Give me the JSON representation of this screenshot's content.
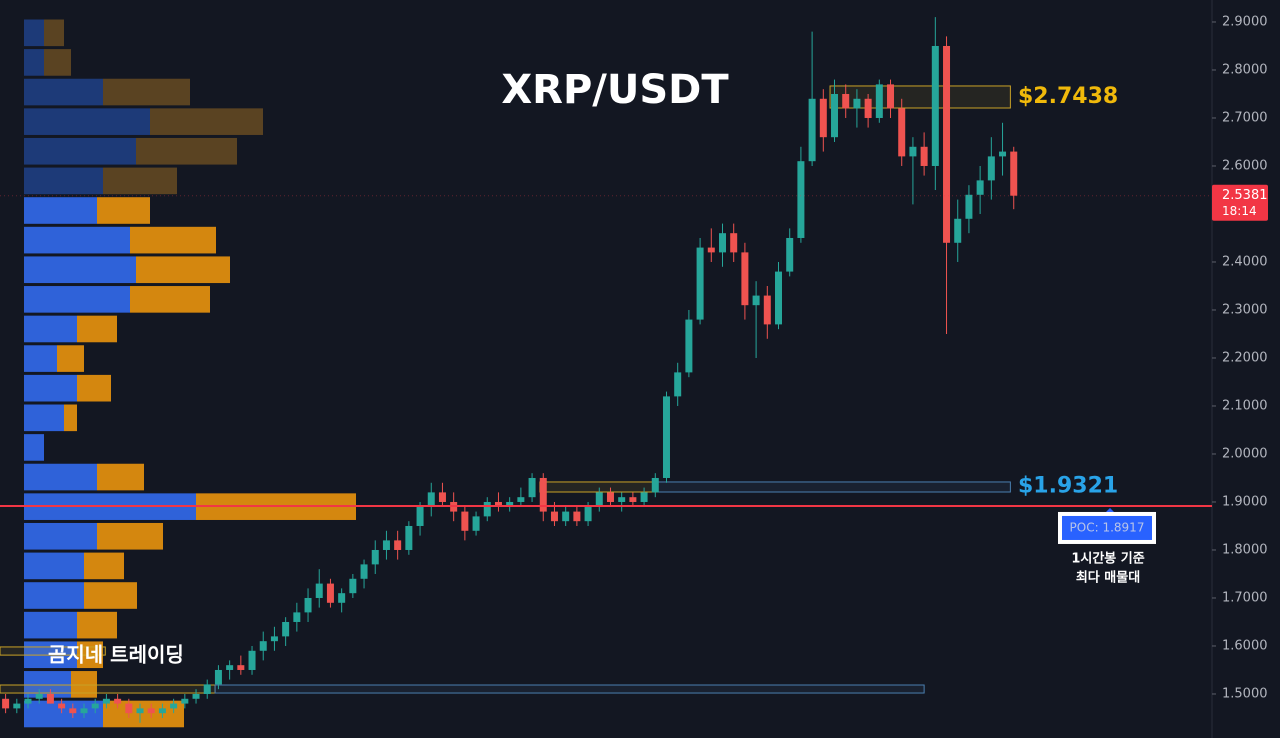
{
  "chart_data": {
    "type": "candlestick",
    "title": "XRP/USDT",
    "up_color": "#26a69a",
    "down_color": "#ef5350",
    "xlim": [
      -0.5,
      107.7
    ],
    "ylim": [
      1.4083,
      2.9458
    ],
    "yticks": [
      {
        "value": 2.9,
        "label": "2.9000"
      },
      {
        "value": 2.8,
        "label": "2.8000"
      },
      {
        "value": 2.7,
        "label": "2.7000"
      },
      {
        "value": 2.6,
        "label": "2.6000"
      },
      {
        "value": 2.5,
        "label": "2.5000"
      },
      {
        "value": 2.4,
        "label": "2.4000"
      },
      {
        "value": 2.3,
        "label": "2.3000"
      },
      {
        "value": 2.2,
        "label": "2.2000"
      },
      {
        "value": 2.1,
        "label": "2.1000"
      },
      {
        "value": 2.0,
        "label": "2.0000"
      },
      {
        "value": 1.9,
        "label": "1.9000"
      },
      {
        "value": 1.8,
        "label": "1.8000"
      },
      {
        "value": 1.7,
        "label": "1.7000"
      },
      {
        "value": 1.6,
        "label": "1.6000"
      },
      {
        "value": 1.5,
        "label": "1.5000"
      }
    ],
    "ohlc": [
      [
        1.49,
        1.5,
        1.46,
        1.47
      ],
      [
        1.47,
        1.49,
        1.46,
        1.48
      ],
      [
        1.48,
        1.5,
        1.47,
        1.49
      ],
      [
        1.49,
        1.51,
        1.48,
        1.5
      ],
      [
        1.5,
        1.51,
        1.48,
        1.48
      ],
      [
        1.48,
        1.49,
        1.46,
        1.47
      ],
      [
        1.47,
        1.48,
        1.45,
        1.46
      ],
      [
        1.46,
        1.48,
        1.45,
        1.47
      ],
      [
        1.47,
        1.49,
        1.46,
        1.48
      ],
      [
        1.48,
        1.5,
        1.47,
        1.49
      ],
      [
        1.49,
        1.5,
        1.47,
        1.48
      ],
      [
        1.48,
        1.49,
        1.45,
        1.46
      ],
      [
        1.46,
        1.48,
        1.44,
        1.47
      ],
      [
        1.47,
        1.48,
        1.45,
        1.46
      ],
      [
        1.46,
        1.48,
        1.45,
        1.47
      ],
      [
        1.47,
        1.49,
        1.46,
        1.48
      ],
      [
        1.48,
        1.5,
        1.47,
        1.49
      ],
      [
        1.49,
        1.51,
        1.48,
        1.5
      ],
      [
        1.5,
        1.53,
        1.49,
        1.52
      ],
      [
        1.52,
        1.56,
        1.51,
        1.55
      ],
      [
        1.55,
        1.57,
        1.53,
        1.56
      ],
      [
        1.56,
        1.58,
        1.54,
        1.55
      ],
      [
        1.55,
        1.6,
        1.54,
        1.59
      ],
      [
        1.59,
        1.63,
        1.57,
        1.61
      ],
      [
        1.61,
        1.64,
        1.59,
        1.62
      ],
      [
        1.62,
        1.66,
        1.6,
        1.65
      ],
      [
        1.65,
        1.69,
        1.63,
        1.67
      ],
      [
        1.67,
        1.72,
        1.65,
        1.7
      ],
      [
        1.7,
        1.76,
        1.68,
        1.73
      ],
      [
        1.73,
        1.74,
        1.68,
        1.69
      ],
      [
        1.69,
        1.72,
        1.67,
        1.71
      ],
      [
        1.71,
        1.75,
        1.7,
        1.74
      ],
      [
        1.74,
        1.78,
        1.72,
        1.77
      ],
      [
        1.77,
        1.82,
        1.75,
        1.8
      ],
      [
        1.8,
        1.84,
        1.78,
        1.82
      ],
      [
        1.82,
        1.84,
        1.78,
        1.8
      ],
      [
        1.8,
        1.86,
        1.79,
        1.85
      ],
      [
        1.85,
        1.9,
        1.83,
        1.89
      ],
      [
        1.89,
        1.94,
        1.87,
        1.92
      ],
      [
        1.92,
        1.94,
        1.89,
        1.9
      ],
      [
        1.9,
        1.92,
        1.86,
        1.88
      ],
      [
        1.88,
        1.89,
        1.82,
        1.84
      ],
      [
        1.84,
        1.88,
        1.83,
        1.87
      ],
      [
        1.87,
        1.91,
        1.86,
        1.9
      ],
      [
        1.9,
        1.92,
        1.88,
        1.89
      ],
      [
        1.89,
        1.91,
        1.88,
        1.9
      ],
      [
        1.9,
        1.93,
        1.89,
        1.91
      ],
      [
        1.91,
        1.96,
        1.9,
        1.95
      ],
      [
        1.95,
        1.96,
        1.86,
        1.88
      ],
      [
        1.88,
        1.9,
        1.85,
        1.86
      ],
      [
        1.86,
        1.89,
        1.85,
        1.88
      ],
      [
        1.88,
        1.89,
        1.85,
        1.86
      ],
      [
        1.86,
        1.9,
        1.85,
        1.89
      ],
      [
        1.89,
        1.93,
        1.88,
        1.92
      ],
      [
        1.92,
        1.93,
        1.89,
        1.9
      ],
      [
        1.9,
        1.92,
        1.88,
        1.91
      ],
      [
        1.91,
        1.92,
        1.89,
        1.9
      ],
      [
        1.9,
        1.93,
        1.89,
        1.92
      ],
      [
        1.92,
        1.96,
        1.91,
        1.95
      ],
      [
        1.95,
        2.13,
        1.94,
        2.12
      ],
      [
        2.12,
        2.19,
        2.1,
        2.17
      ],
      [
        2.17,
        2.3,
        2.16,
        2.28
      ],
      [
        2.28,
        2.45,
        2.27,
        2.43
      ],
      [
        2.43,
        2.47,
        2.4,
        2.42
      ],
      [
        2.42,
        2.48,
        2.39,
        2.46
      ],
      [
        2.46,
        2.48,
        2.4,
        2.42
      ],
      [
        2.42,
        2.44,
        2.28,
        2.31
      ],
      [
        2.31,
        2.36,
        2.2,
        2.33
      ],
      [
        2.33,
        2.35,
        2.24,
        2.27
      ],
      [
        2.27,
        2.4,
        2.26,
        2.38
      ],
      [
        2.38,
        2.47,
        2.37,
        2.45
      ],
      [
        2.45,
        2.64,
        2.44,
        2.61
      ],
      [
        2.61,
        2.88,
        2.6,
        2.74
      ],
      [
        2.74,
        2.76,
        2.63,
        2.66
      ],
      [
        2.66,
        2.78,
        2.65,
        2.75
      ],
      [
        2.75,
        2.77,
        2.7,
        2.72
      ],
      [
        2.72,
        2.76,
        2.68,
        2.74
      ],
      [
        2.74,
        2.75,
        2.68,
        2.7
      ],
      [
        2.7,
        2.78,
        2.69,
        2.77
      ],
      [
        2.77,
        2.78,
        2.7,
        2.72
      ],
      [
        2.72,
        2.74,
        2.6,
        2.62
      ],
      [
        2.62,
        2.66,
        2.52,
        2.64
      ],
      [
        2.64,
        2.67,
        2.58,
        2.6
      ],
      [
        2.6,
        2.91,
        2.55,
        2.85
      ],
      [
        2.85,
        2.87,
        2.25,
        2.44
      ],
      [
        2.44,
        2.53,
        2.4,
        2.49
      ],
      [
        2.49,
        2.56,
        2.46,
        2.54
      ],
      [
        2.54,
        2.6,
        2.5,
        2.57
      ],
      [
        2.57,
        2.66,
        2.53,
        2.62
      ],
      [
        2.62,
        2.69,
        2.58,
        2.63
      ],
      [
        2.63,
        2.64,
        2.51,
        2.5381
      ]
    ],
    "last_price": {
      "value": 2.5381,
      "label": "2.5381",
      "color": "#f23645"
    },
    "countdown": "18:14",
    "poc": {
      "value": 1.8917,
      "label": "POC: 1.8917",
      "color": "#f23645"
    },
    "poc_note": [
      "1시간봉 기준",
      "최다 매물대"
    ],
    "levels": [
      {
        "value": 2.7438,
        "label": "$2.7438",
        "color": "#f0b90b"
      },
      {
        "value": 1.9321,
        "label": "$1.9321",
        "color": "#29a3e8"
      }
    ],
    "zones": [
      {
        "x": [
          73.6,
          89.7
        ],
        "y": [
          2.7667,
          2.7208
        ],
        "color": "#c9a227"
      },
      {
        "x": [
          47.7,
          58.2
        ],
        "y": [
          1.9417,
          1.9208
        ],
        "color": "#c9a227"
      },
      {
        "x": [
          58.2,
          89.7
        ],
        "y": [
          1.9417,
          1.9208
        ],
        "color": "#4a7fb0"
      },
      {
        "x": [
          -0.5,
          18.7
        ],
        "y": [
          1.5187,
          1.502
        ],
        "color": "#c9a227"
      },
      {
        "x": [
          18.7,
          82.0
        ],
        "y": [
          1.5187,
          1.502
        ],
        "color": "#4a7fb0"
      },
      {
        "x": [
          -0.5,
          8.9
        ],
        "y": [
          1.598,
          1.581
        ],
        "color": "#c9a227"
      }
    ],
    "volume_profile": {
      "bands": [
        2.9083,
        2.8466,
        2.7849,
        2.7232,
        2.6615,
        2.5998,
        2.5381,
        2.4764,
        2.4147,
        2.353,
        2.2913,
        2.2296,
        2.1679,
        2.1062,
        2.0445,
        1.9828,
        1.9211,
        1.8594,
        1.7977,
        1.736,
        1.6743,
        1.6126,
        1.5509,
        1.4892,
        1.4275
      ],
      "buy": [
        20,
        20,
        79,
        126,
        112,
        79,
        73,
        106,
        112,
        106,
        53,
        33,
        53,
        40,
        20,
        73,
        172,
        73,
        60,
        60,
        53,
        53,
        47,
        79
      ],
      "sell": [
        20,
        27,
        87,
        113,
        101,
        74,
        53,
        86,
        94,
        80,
        40,
        27,
        34,
        13,
        0,
        47,
        160,
        66,
        40,
        53,
        40,
        26,
        26,
        81
      ],
      "value_area": [
        6,
        23
      ],
      "buy_color": "#2f62d9",
      "sell_color": "#d4870f",
      "dim_buy_color": "#1d3a78",
      "dim_sell_color": "#5a4322"
    },
    "watermark": "곰지네 트레이딩"
  }
}
